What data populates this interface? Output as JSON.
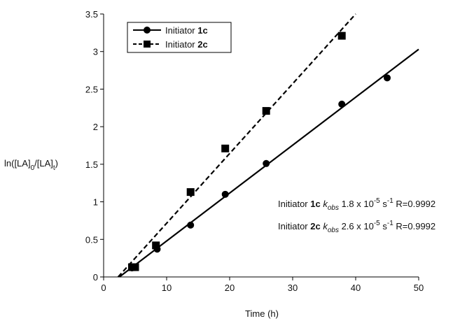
{
  "chart_data": {
    "type": "scatter",
    "title": "",
    "xlabel": "Time (h)",
    "ylabel": {
      "text": "ln([LA]",
      "sub0": "0",
      "mid": "/[LA]",
      "sub1": "t",
      "end": ")"
    },
    "xlim": [
      0,
      50
    ],
    "ylim": [
      0,
      3.5
    ],
    "xticks": [
      0,
      10,
      20,
      30,
      40,
      50
    ],
    "yticks": [
      0,
      0.5,
      1,
      1.5,
      2,
      2.5,
      3,
      3.5
    ],
    "grid": false,
    "legend_position": "top-left",
    "series": [
      {
        "name_prefix": "Initiator ",
        "name_bold": "1c",
        "marker": "circle",
        "line_style": "solid",
        "color": "#000000",
        "x": [
          4.5,
          8.5,
          13.8,
          19.3,
          25.8,
          37.8,
          45.0
        ],
        "y": [
          0.12,
          0.37,
          0.69,
          1.1,
          1.51,
          2.3,
          2.65
        ],
        "fit_line": {
          "x": [
            2.5,
            50.0
          ],
          "y": [
            0.0,
            3.03
          ]
        }
      },
      {
        "name_prefix": "Initiator ",
        "name_bold": "2c",
        "marker": "square",
        "line_style": "dashed",
        "color": "#000000",
        "x": [
          4.5,
          5.0,
          8.3,
          13.8,
          19.3,
          25.8,
          37.8
        ],
        "y": [
          0.13,
          0.13,
          0.42,
          1.13,
          1.71,
          2.21,
          3.21
        ],
        "fit_line": {
          "x": [
            2.3,
            40.0
          ],
          "y": [
            0.0,
            3.5
          ]
        }
      }
    ],
    "annotations": [
      {
        "prefix": "Initiator ",
        "bold": "1c",
        "k": " k",
        "ksub": "obs",
        "value": " 1.8 x 10",
        "exp": "-5",
        "unit": " s",
        "unit_exp": "-1",
        "r": " R=0.9992"
      },
      {
        "prefix": "Initiator ",
        "bold": "2c",
        "k": " k",
        "ksub": "obs",
        "value": " 2.6 x 10",
        "exp": "-5",
        "unit": " s",
        "unit_exp": "-1",
        "r": " R=0.9992"
      }
    ]
  }
}
